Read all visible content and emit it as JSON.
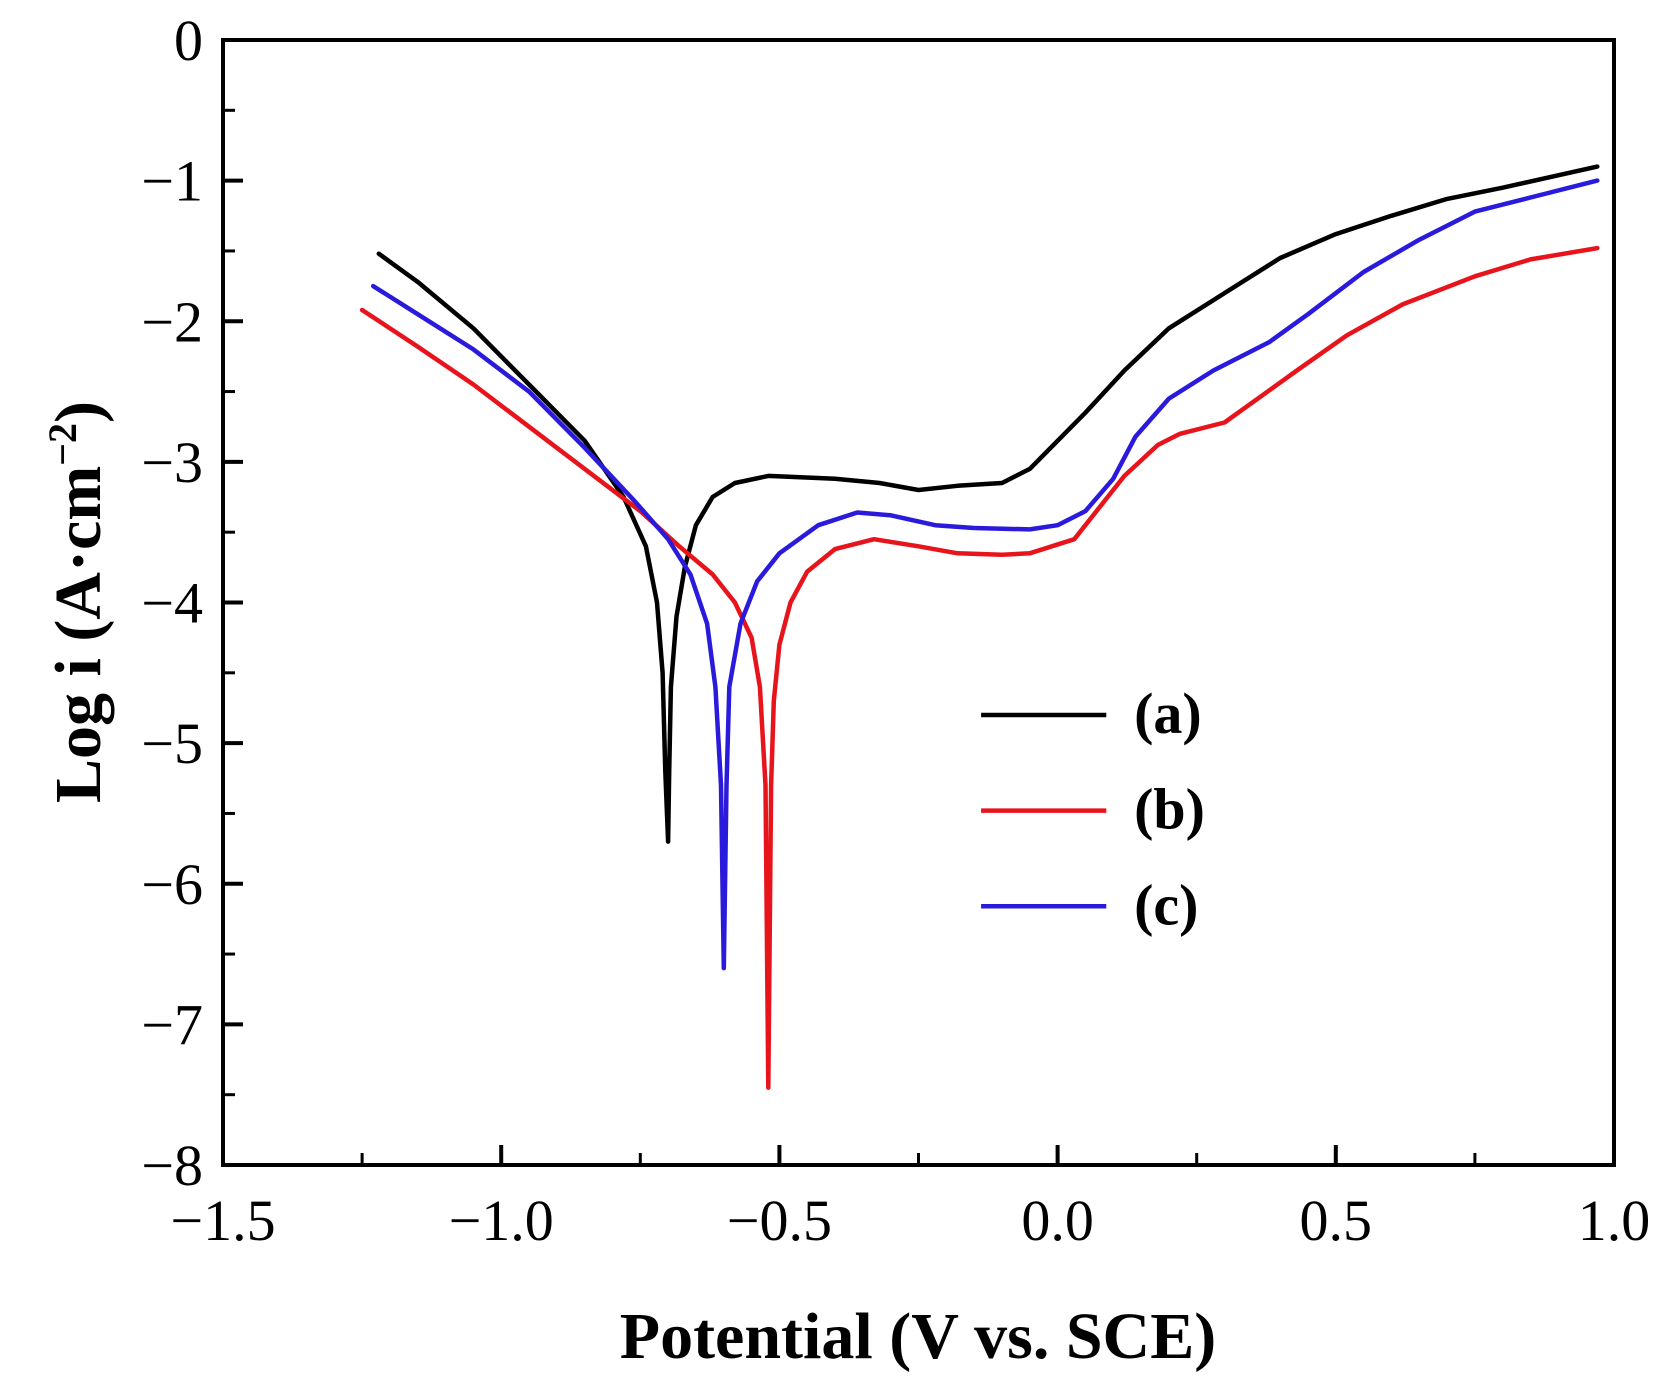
{
  "chart_data": {
    "type": "line",
    "title": "",
    "xlabel": "Potential (V vs. SCE)",
    "ylabel_parts": {
      "main": "Log i (A·cm",
      "sup": "−2",
      "close": ")"
    },
    "xlim": [
      -1.5,
      1.0
    ],
    "ylim": [
      -8,
      0
    ],
    "x_ticks": [
      -1.5,
      -1.0,
      -0.5,
      0.0,
      0.5,
      1.0
    ],
    "x_tick_labels": [
      "−1.5",
      "−1.0",
      "−0.5",
      "0.0",
      "0.5",
      "1.0"
    ],
    "y_ticks": [
      0,
      -1,
      -2,
      -3,
      -4,
      -5,
      -6,
      -7,
      -8
    ],
    "y_tick_labels": [
      "0",
      "−1",
      "−2",
      "−3",
      "−4",
      "−5",
      "−6",
      "−7",
      "−8"
    ],
    "grid": false,
    "legend_position": "center-right",
    "series": [
      {
        "name": "(a)",
        "color": "#000000",
        "points": [
          [
            -1.22,
            -1.52
          ],
          [
            -1.15,
            -1.72
          ],
          [
            -1.05,
            -2.05
          ],
          [
            -0.95,
            -2.45
          ],
          [
            -0.85,
            -2.85
          ],
          [
            -0.78,
            -3.25
          ],
          [
            -0.74,
            -3.6
          ],
          [
            -0.72,
            -4.0
          ],
          [
            -0.71,
            -4.5
          ],
          [
            -0.705,
            -5.2
          ],
          [
            -0.7,
            -5.7
          ],
          [
            -0.698,
            -5.2
          ],
          [
            -0.695,
            -4.6
          ],
          [
            -0.685,
            -4.1
          ],
          [
            -0.67,
            -3.75
          ],
          [
            -0.65,
            -3.45
          ],
          [
            -0.62,
            -3.25
          ],
          [
            -0.58,
            -3.15
          ],
          [
            -0.52,
            -3.1
          ],
          [
            -0.4,
            -3.12
          ],
          [
            -0.32,
            -3.15
          ],
          [
            -0.25,
            -3.2
          ],
          [
            -0.18,
            -3.17
          ],
          [
            -0.1,
            -3.15
          ],
          [
            -0.05,
            -3.05
          ],
          [
            0.0,
            -2.85
          ],
          [
            0.05,
            -2.65
          ],
          [
            0.12,
            -2.35
          ],
          [
            0.2,
            -2.05
          ],
          [
            0.3,
            -1.8
          ],
          [
            0.4,
            -1.55
          ],
          [
            0.5,
            -1.38
          ],
          [
            0.6,
            -1.25
          ],
          [
            0.7,
            -1.13
          ],
          [
            0.8,
            -1.05
          ],
          [
            0.97,
            -0.9
          ]
        ]
      },
      {
        "name": "(b)",
        "color": "#e8141c",
        "points": [
          [
            -1.25,
            -1.92
          ],
          [
            -1.15,
            -2.18
          ],
          [
            -1.05,
            -2.45
          ],
          [
            -0.95,
            -2.75
          ],
          [
            -0.85,
            -3.05
          ],
          [
            -0.75,
            -3.35
          ],
          [
            -0.68,
            -3.6
          ],
          [
            -0.62,
            -3.8
          ],
          [
            -0.58,
            -4.0
          ],
          [
            -0.55,
            -4.25
          ],
          [
            -0.535,
            -4.6
          ],
          [
            -0.525,
            -5.3
          ],
          [
            -0.52,
            -7.45
          ],
          [
            -0.515,
            -5.3
          ],
          [
            -0.51,
            -4.7
          ],
          [
            -0.5,
            -4.3
          ],
          [
            -0.48,
            -4.0
          ],
          [
            -0.45,
            -3.78
          ],
          [
            -0.4,
            -3.62
          ],
          [
            -0.33,
            -3.55
          ],
          [
            -0.25,
            -3.6
          ],
          [
            -0.18,
            -3.65
          ],
          [
            -0.1,
            -3.66
          ],
          [
            -0.05,
            -3.65
          ],
          [
            0.03,
            -3.55
          ],
          [
            0.07,
            -3.35
          ],
          [
            0.12,
            -3.1
          ],
          [
            0.18,
            -2.88
          ],
          [
            0.22,
            -2.8
          ],
          [
            0.3,
            -2.72
          ],
          [
            0.36,
            -2.55
          ],
          [
            0.43,
            -2.35
          ],
          [
            0.52,
            -2.1
          ],
          [
            0.62,
            -1.88
          ],
          [
            0.75,
            -1.68
          ],
          [
            0.85,
            -1.56
          ],
          [
            0.97,
            -1.48
          ]
        ]
      },
      {
        "name": "(c)",
        "color": "#2a1adb",
        "points": [
          [
            -1.23,
            -1.75
          ],
          [
            -1.15,
            -1.95
          ],
          [
            -1.05,
            -2.2
          ],
          [
            -0.95,
            -2.5
          ],
          [
            -0.85,
            -2.9
          ],
          [
            -0.76,
            -3.28
          ],
          [
            -0.7,
            -3.55
          ],
          [
            -0.66,
            -3.8
          ],
          [
            -0.63,
            -4.15
          ],
          [
            -0.615,
            -4.6
          ],
          [
            -0.605,
            -5.3
          ],
          [
            -0.6,
            -6.6
          ],
          [
            -0.595,
            -5.3
          ],
          [
            -0.59,
            -4.6
          ],
          [
            -0.57,
            -4.15
          ],
          [
            -0.54,
            -3.85
          ],
          [
            -0.5,
            -3.65
          ],
          [
            -0.43,
            -3.45
          ],
          [
            -0.36,
            -3.36
          ],
          [
            -0.3,
            -3.38
          ],
          [
            -0.22,
            -3.45
          ],
          [
            -0.15,
            -3.47
          ],
          [
            -0.05,
            -3.48
          ],
          [
            0.0,
            -3.45
          ],
          [
            0.05,
            -3.35
          ],
          [
            0.1,
            -3.12
          ],
          [
            0.14,
            -2.82
          ],
          [
            0.2,
            -2.55
          ],
          [
            0.28,
            -2.35
          ],
          [
            0.38,
            -2.15
          ],
          [
            0.45,
            -1.95
          ],
          [
            0.55,
            -1.65
          ],
          [
            0.65,
            -1.42
          ],
          [
            0.75,
            -1.22
          ],
          [
            0.85,
            -1.12
          ],
          [
            0.97,
            -1.0
          ]
        ]
      }
    ]
  }
}
